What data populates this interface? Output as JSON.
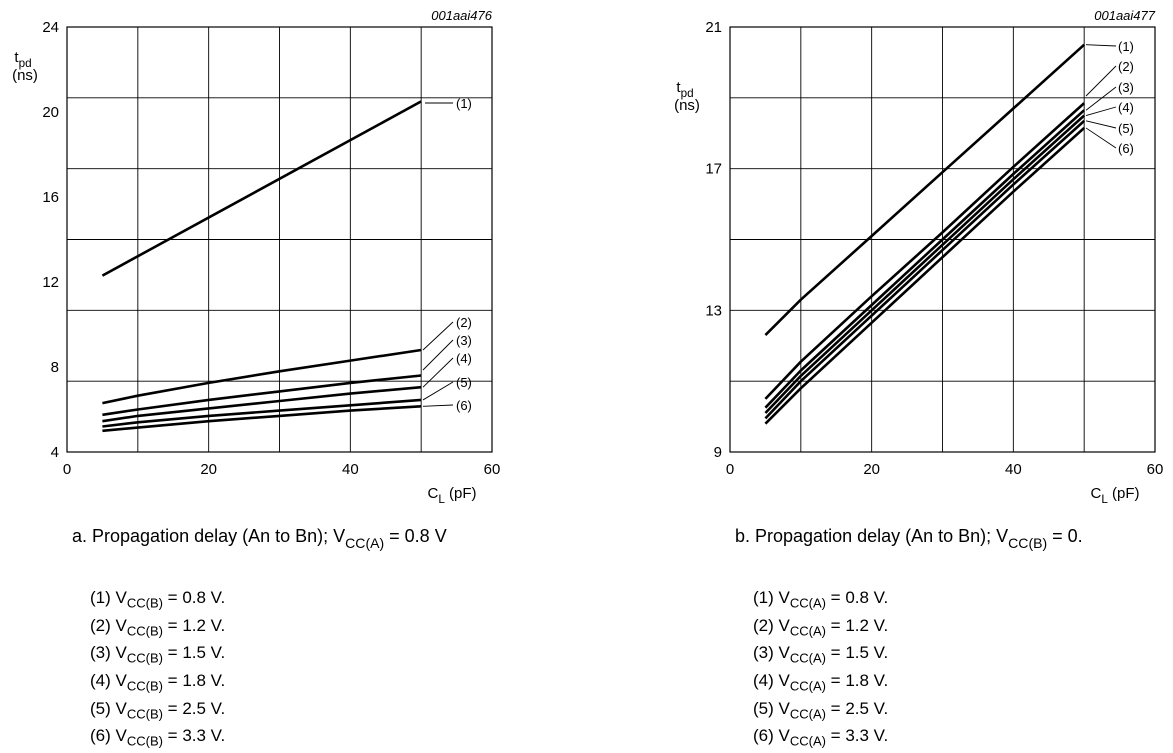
{
  "chart_data": [
    {
      "type": "line",
      "id_label": "001aai476",
      "title": "a. Propagation delay (An to Bn); V_CC(A) = 0.8 V",
      "xlabel": "C_L (pF)",
      "ylabel": "t_pd (ns)",
      "xlim": [
        0,
        60
      ],
      "ylim": [
        4,
        24
      ],
      "x_ticks": [
        0,
        20,
        40,
        60
      ],
      "y_ticks": [
        4,
        8,
        12,
        16,
        20,
        24
      ],
      "grid": true,
      "series": [
        {
          "name": "(1)",
          "x": [
            5,
            50
          ],
          "y": [
            12.3,
            20.5
          ]
        },
        {
          "name": "(2)",
          "x": [
            5,
            10,
            20,
            30,
            40,
            50
          ],
          "y": [
            6.3,
            6.65,
            7.25,
            7.8,
            8.3,
            8.8
          ]
        },
        {
          "name": "(3)",
          "x": [
            5,
            10,
            20,
            30,
            40,
            50
          ],
          "y": [
            5.75,
            6.0,
            6.45,
            6.85,
            7.25,
            7.6
          ]
        },
        {
          "name": "(4)",
          "x": [
            5,
            10,
            20,
            30,
            40,
            50
          ],
          "y": [
            5.45,
            5.7,
            6.05,
            6.4,
            6.75,
            7.05
          ]
        },
        {
          "name": "(5)",
          "x": [
            5,
            10,
            20,
            30,
            40,
            50
          ],
          "y": [
            5.2,
            5.4,
            5.7,
            5.95,
            6.2,
            6.45
          ]
        },
        {
          "name": "(6)",
          "x": [
            5,
            10,
            20,
            30,
            40,
            50
          ],
          "y": [
            5.0,
            5.15,
            5.45,
            5.7,
            5.95,
            6.15
          ]
        }
      ],
      "notes": [
        {
          "pre": "(1) V",
          "sub": "CC(B)",
          "post": " = 0.8 V."
        },
        {
          "pre": "(2) V",
          "sub": "CC(B)",
          "post": " = 1.2 V."
        },
        {
          "pre": "(3) V",
          "sub": "CC(B)",
          "post": " = 1.5 V."
        },
        {
          "pre": "(4) V",
          "sub": "CC(B)",
          "post": " = 1.8 V."
        },
        {
          "pre": "(5) V",
          "sub": "CC(B)",
          "post": " = 2.5 V."
        },
        {
          "pre": "(6) V",
          "sub": "CC(B)",
          "post": " = 3.3 V."
        }
      ]
    },
    {
      "type": "line",
      "id_label": "001aai477",
      "title": "b. Propagation delay (An to Bn); V_CC(B) = 0.",
      "xlabel": "C_L (pF)",
      "ylabel": "t_pd (ns)",
      "xlim": [
        0,
        60
      ],
      "ylim": [
        9,
        21
      ],
      "x_ticks": [
        0,
        20,
        40,
        60
      ],
      "y_ticks": [
        9,
        13,
        17,
        21
      ],
      "grid": true,
      "series": [
        {
          "name": "(1)",
          "x": [
            5,
            10,
            20,
            30,
            40,
            50
          ],
          "y": [
            12.3,
            13.3,
            15.1,
            16.9,
            18.7,
            20.5
          ]
        },
        {
          "name": "(2)",
          "x": [
            5,
            10,
            20,
            30,
            40,
            50
          ],
          "y": [
            10.5,
            11.55,
            13.4,
            15.2,
            17.05,
            18.85
          ]
        },
        {
          "name": "(3)",
          "x": [
            5,
            10,
            20,
            30,
            40,
            50
          ],
          "y": [
            10.25,
            11.3,
            13.15,
            15.0,
            16.85,
            18.65
          ]
        },
        {
          "name": "(4)",
          "x": [
            5,
            10,
            20,
            30,
            40,
            50
          ],
          "y": [
            10.1,
            11.15,
            13.0,
            14.85,
            16.7,
            18.5
          ]
        },
        {
          "name": "(5)",
          "x": [
            5,
            10,
            20,
            30,
            40,
            50
          ],
          "y": [
            9.95,
            11.0,
            12.85,
            14.7,
            16.55,
            18.35
          ]
        },
        {
          "name": "(6)",
          "x": [
            5,
            10,
            20,
            30,
            40,
            50
          ],
          "y": [
            9.8,
            10.8,
            12.65,
            14.5,
            16.35,
            18.15
          ]
        }
      ],
      "notes": [
        {
          "pre": "(1) V",
          "sub": "CC(A)",
          "post": " = 0.8 V."
        },
        {
          "pre": "(2) V",
          "sub": "CC(A)",
          "post": " = 1.2 V."
        },
        {
          "pre": "(3) V",
          "sub": "CC(A)",
          "post": " = 1.5 V."
        },
        {
          "pre": "(4) V",
          "sub": "CC(A)",
          "post": " = 1.8 V."
        },
        {
          "pre": "(5) V",
          "sub": "CC(A)",
          "post": " = 2.5 V."
        },
        {
          "pre": "(6) V",
          "sub": "CC(A)",
          "post": " = 3.3 V."
        }
      ]
    }
  ]
}
